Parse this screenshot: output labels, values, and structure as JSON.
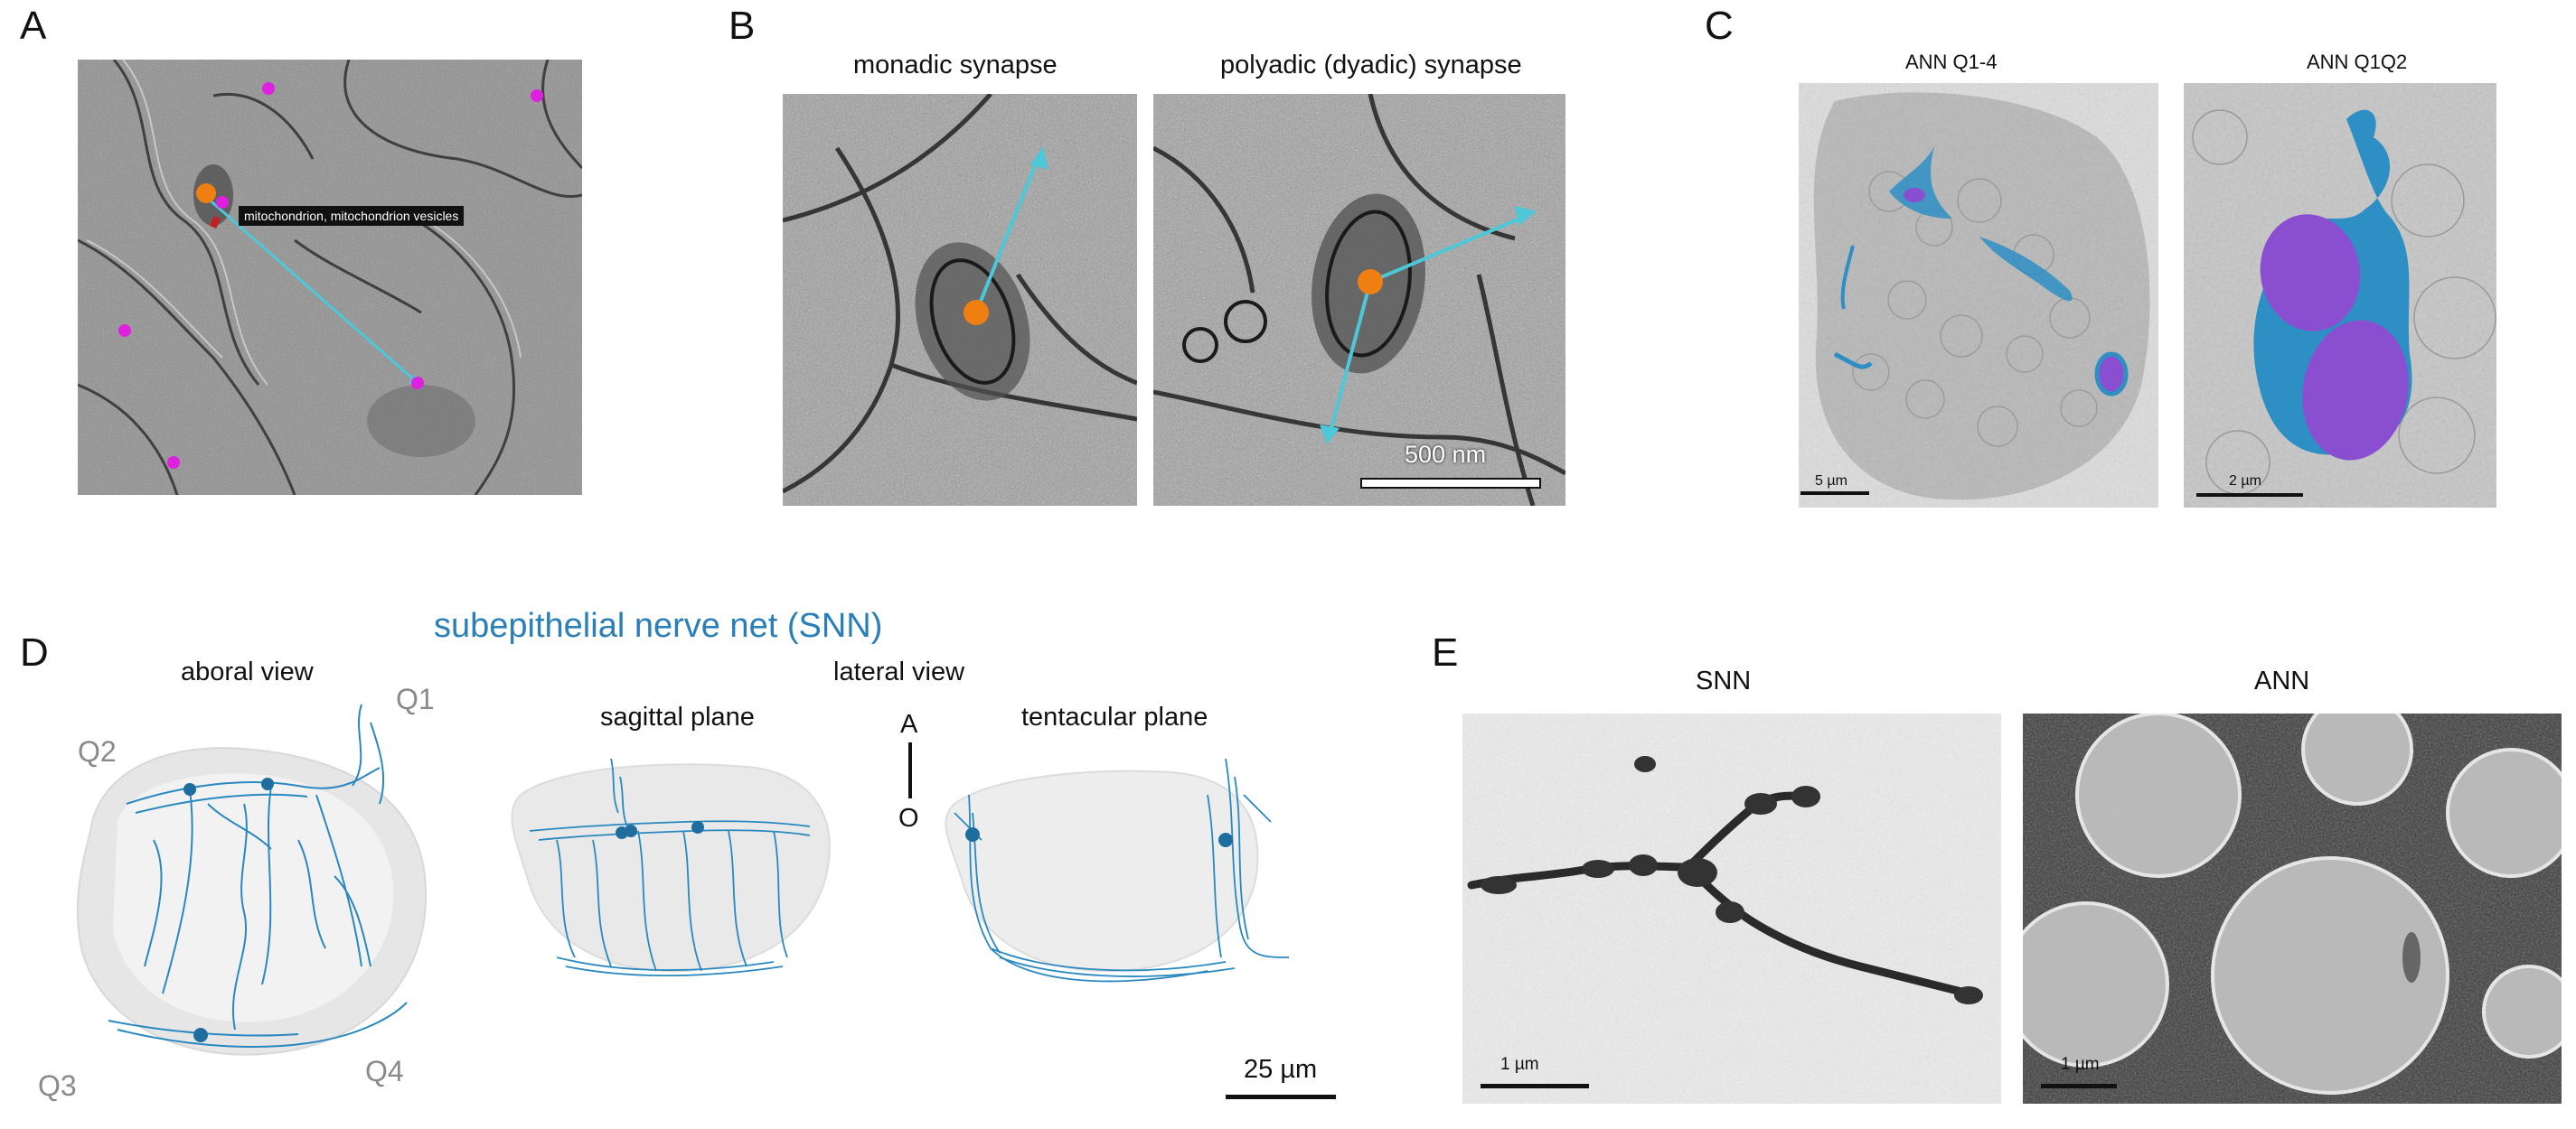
{
  "panels": {
    "A": {
      "letter": "A",
      "tooltip": "mitochondrion, mitochondrion vesicles"
    },
    "B": {
      "letter": "B",
      "left_caption": "monadic synapse",
      "right_caption": "polyadic (dyadic) synapse",
      "scale": "500 nm"
    },
    "C": {
      "letter": "C",
      "left_caption": "ANN Q1-4",
      "right_caption": "ANN Q1Q2",
      "left_scale": "5 µm",
      "right_scale": "2 µm"
    },
    "D": {
      "letter": "D",
      "title": "subepithelial nerve net (SNN)",
      "aboral_view": "aboral view",
      "lateral_view": "lateral view",
      "sagittal_plane": "sagittal plane",
      "tentacular_plane": "tentacular plane",
      "axis_top": "A",
      "axis_bottom": "O",
      "quadrants": [
        "Q1",
        "Q2",
        "Q3",
        "Q4"
      ],
      "scale": "25 µm"
    },
    "E": {
      "letter": "E",
      "left_caption": "SNN",
      "right_caption": "ANN",
      "left_scale": "1 µm",
      "right_scale": "1 µm"
    }
  },
  "colors": {
    "arrow": "#4cc8d8",
    "synapse_dot": "#f07f12",
    "marker": "#e020e0",
    "neuron_blue": "#2a88c0",
    "nucleus_purple": "#8a4fd0",
    "snn_title": "#2a7fb8"
  }
}
